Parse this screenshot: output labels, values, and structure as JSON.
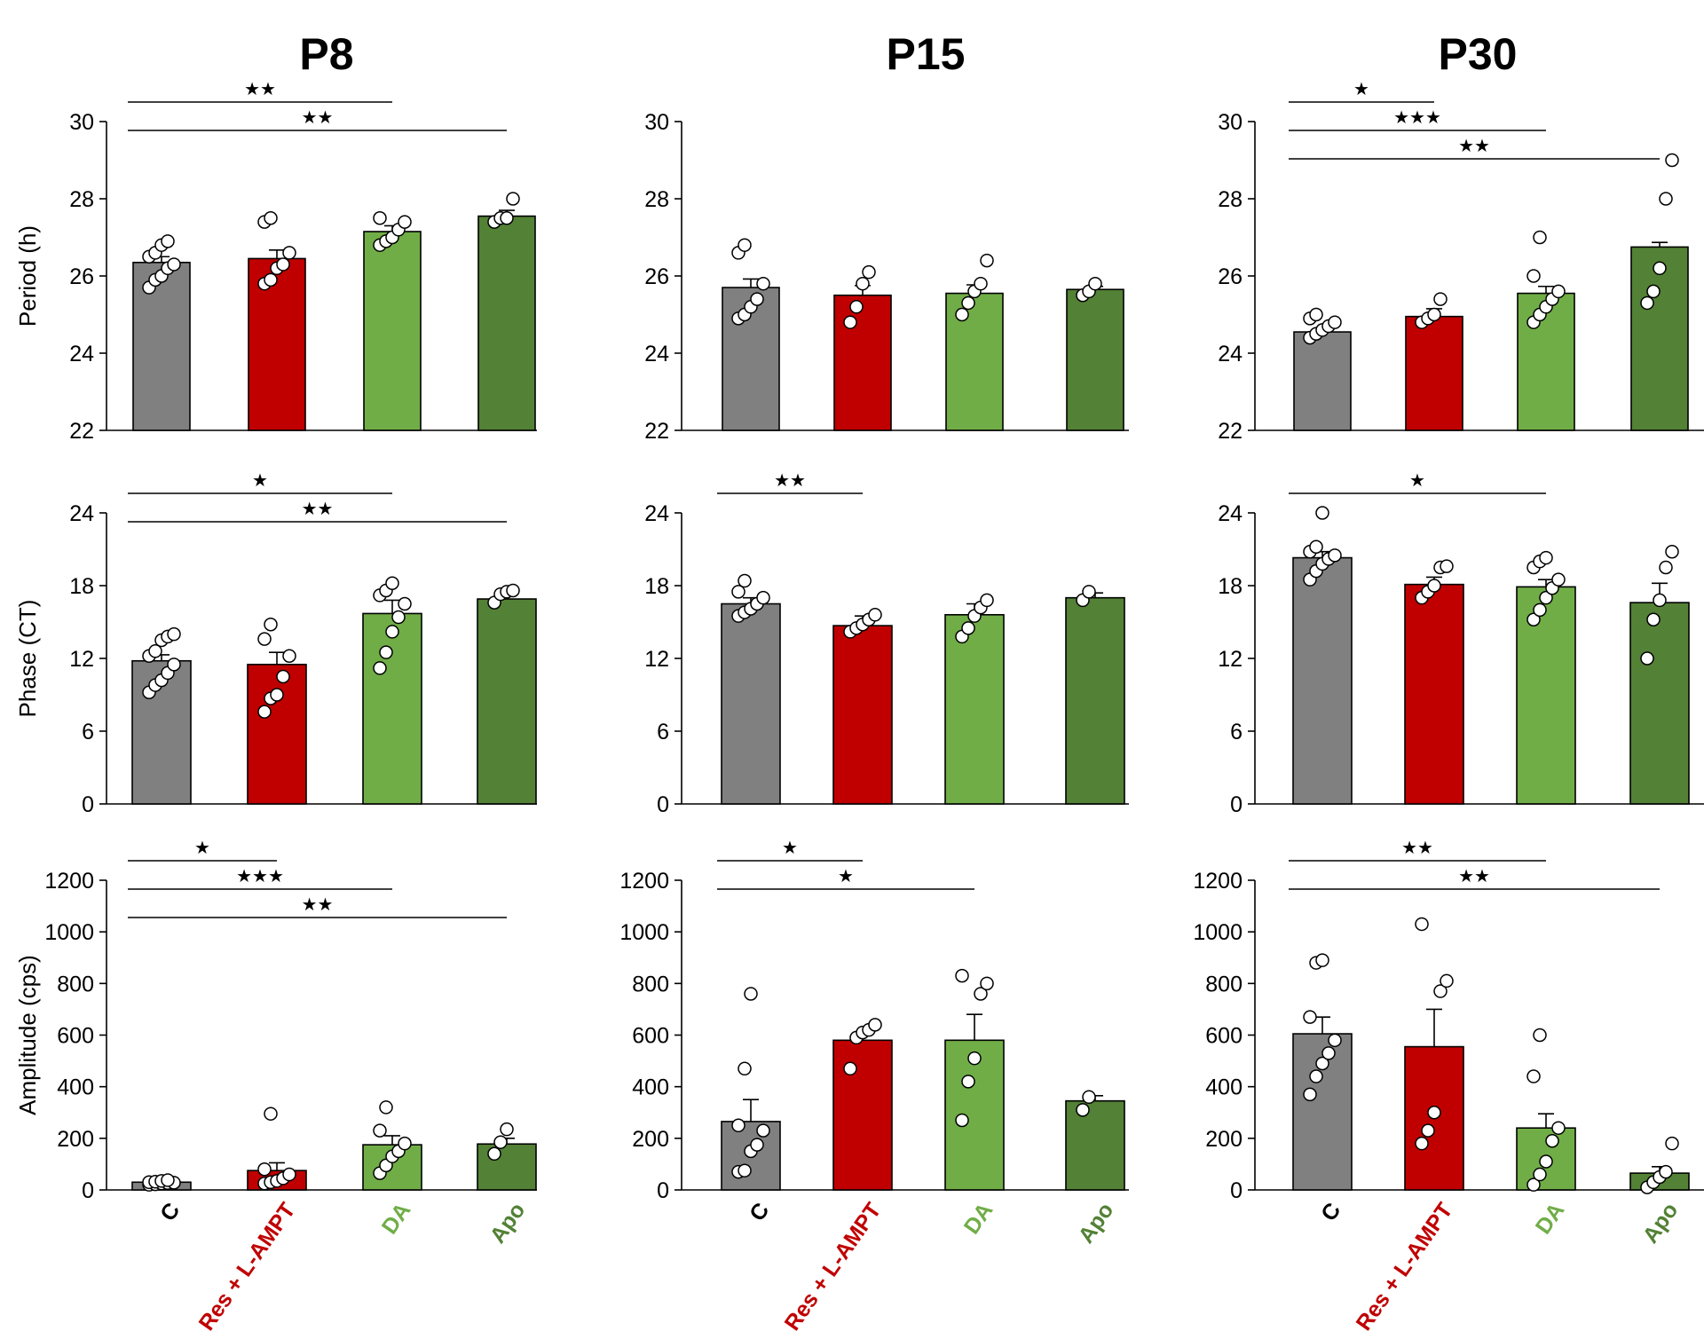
{
  "colors": {
    "C": "#808080",
    "Res + L-AMPT": "#c00000",
    "DA": "#70ad47",
    "Apo": "#538135"
  },
  "chart_data": [
    {
      "type": "bar",
      "column": "P8",
      "title": "P8",
      "ylabel": "Period (h)",
      "ylim": [
        22,
        30
      ],
      "yticks": [
        "22",
        "24",
        "26",
        "28",
        "30"
      ],
      "categories": [
        "C",
        "Res + L-AMPT",
        "DA",
        "Apo"
      ],
      "values": [
        26.35,
        26.45,
        27.15,
        27.55
      ],
      "errors": [
        0.15,
        0.22,
        0.15,
        0.15
      ],
      "points": [
        [
          25.7,
          25.9,
          26.0,
          26.2,
          26.3,
          26.5,
          26.6,
          26.8,
          26.9
        ],
        [
          25.8,
          25.9,
          26.2,
          26.3,
          26.6,
          27.4,
          27.5
        ],
        [
          26.8,
          26.9,
          27.0,
          27.2,
          27.4,
          27.5
        ],
        [
          27.4,
          27.5,
          27.5,
          28.0
        ]
      ],
      "significance": [
        {
          "from": 0,
          "to": 2,
          "label": "★★"
        },
        {
          "from": 0,
          "to": 3,
          "label": "★★"
        }
      ]
    },
    {
      "type": "bar",
      "column": "P15",
      "title": "P15",
      "ylabel": "",
      "ylim": [
        22,
        30
      ],
      "yticks": [
        "22",
        "24",
        "26",
        "28",
        "30"
      ],
      "categories": [
        "C",
        "Res + L-AMPT",
        "DA",
        "Apo"
      ],
      "values": [
        25.7,
        25.5,
        25.55,
        25.65
      ],
      "errors": [
        0.22,
        0.25,
        0.22,
        0.08
      ],
      "points": [
        [
          24.9,
          25.0,
          25.2,
          25.4,
          25.8,
          26.6,
          26.8
        ],
        [
          24.8,
          25.2,
          25.8,
          26.1
        ],
        [
          25.0,
          25.3,
          25.6,
          25.8,
          26.4
        ],
        [
          25.5,
          25.6,
          25.8
        ]
      ],
      "significance": []
    },
    {
      "type": "bar",
      "column": "P30",
      "title": "P30",
      "ylabel": "",
      "ylim": [
        22,
        30
      ],
      "yticks": [
        "22",
        "24",
        "26",
        "28",
        "30"
      ],
      "categories": [
        "C",
        "Res + L-AMPT",
        "DA",
        "Apo"
      ],
      "values": [
        24.55,
        24.95,
        25.55,
        26.75
      ],
      "errors": [
        0.1,
        0.2,
        0.18,
        0.12
      ],
      "points": [
        [
          24.4,
          24.5,
          24.6,
          24.7,
          24.8,
          24.9,
          25.0
        ],
        [
          24.8,
          24.9,
          25.0,
          25.4
        ],
        [
          24.8,
          25.0,
          25.2,
          25.4,
          25.6,
          26.0,
          27.0
        ],
        [
          25.3,
          25.6,
          26.2,
          28.0,
          29.0
        ]
      ],
      "significance": [
        {
          "from": 0,
          "to": 1,
          "label": "★"
        },
        {
          "from": 0,
          "to": 2,
          "label": "★★★"
        },
        {
          "from": 0,
          "to": 3,
          "label": "★★"
        }
      ]
    },
    {
      "type": "bar",
      "column": "P8",
      "title": "",
      "ylabel": "Phase (CT)",
      "ylim": [
        0,
        24
      ],
      "yticks": [
        "0",
        "6",
        "12",
        "18",
        "24"
      ],
      "categories": [
        "C",
        "Res + L-AMPT",
        "DA",
        "Apo"
      ],
      "values": [
        11.8,
        11.5,
        15.7,
        16.9
      ],
      "errors": [
        0.5,
        1.0,
        1.1,
        0.5
      ],
      "points": [
        [
          9.2,
          9.8,
          10.2,
          10.8,
          11.5,
          12.2,
          12.6,
          13.5,
          13.8,
          14.0
        ],
        [
          7.6,
          8.7,
          9.0,
          10.5,
          12.2,
          13.6,
          14.8
        ],
        [
          11.2,
          12.5,
          14.2,
          15.4,
          16.5,
          17.2,
          17.6,
          18.2
        ],
        [
          16.6,
          17.3,
          17.5,
          17.6
        ]
      ],
      "significance": [
        {
          "from": 0,
          "to": 2,
          "label": "★"
        },
        {
          "from": 0,
          "to": 3,
          "label": "★★"
        }
      ]
    },
    {
      "type": "bar",
      "column": "P15",
      "title": "",
      "ylabel": "",
      "ylim": [
        0,
        24
      ],
      "yticks": [
        "0",
        "6",
        "12",
        "18",
        "24"
      ],
      "categories": [
        "C",
        "Res + L-AMPT",
        "DA",
        "Apo"
      ],
      "values": [
        16.5,
        14.7,
        15.6,
        17.0
      ],
      "errors": [
        0.5,
        0.8,
        0.9,
        0.4
      ],
      "points": [
        [
          15.5,
          15.8,
          16.1,
          16.5,
          17.0,
          17.5,
          18.4
        ],
        [
          14.2,
          14.5,
          14.8,
          15.2,
          15.6
        ],
        [
          13.8,
          14.5,
          15.5,
          16.2,
          16.8
        ],
        [
          16.8,
          17.5
        ]
      ],
      "significance": [
        {
          "from": 0,
          "to": 1,
          "label": "★★"
        }
      ]
    },
    {
      "type": "bar",
      "column": "P30",
      "title": "",
      "ylabel": "",
      "ylim": [
        0,
        24
      ],
      "yticks": [
        "0",
        "6",
        "12",
        "18",
        "24"
      ],
      "categories": [
        "C",
        "Res + L-AMPT",
        "DA",
        "Apo"
      ],
      "values": [
        20.3,
        18.1,
        17.9,
        16.6
      ],
      "errors": [
        0.5,
        0.6,
        0.6,
        1.6
      ],
      "points": [
        [
          18.5,
          19.2,
          19.8,
          20.2,
          20.5,
          20.8,
          21.2,
          24.0
        ],
        [
          17.0,
          17.5,
          18.0,
          19.5,
          19.6
        ],
        [
          15.2,
          16.0,
          17.0,
          17.8,
          18.5,
          19.5,
          20.0,
          20.3
        ],
        [
          12.0,
          15.2,
          16.8,
          19.5,
          20.8
        ]
      ],
      "significance": [
        {
          "from": 0,
          "to": 2,
          "label": "★"
        }
      ]
    },
    {
      "type": "bar",
      "column": "P8",
      "title": "",
      "ylabel": "Amplitude (cps)",
      "ylim": [
        0,
        1200
      ],
      "yticks": [
        "0",
        "200",
        "400",
        "600",
        "800",
        "1000",
        "1200"
      ],
      "categories": [
        "C",
        "Res + L-AMPT",
        "DA",
        "Apo"
      ],
      "values": [
        30,
        75,
        175,
        178
      ],
      "errors": [
        5,
        30,
        35,
        22
      ],
      "points": [
        [
          20,
          22,
          25,
          27,
          28,
          30,
          32,
          35,
          38
        ],
        [
          25,
          30,
          35,
          45,
          60,
          80,
          295
        ],
        [
          65,
          95,
          130,
          150,
          180,
          230,
          320
        ],
        [
          140,
          185,
          235
        ]
      ],
      "significance": [
        {
          "from": 0,
          "to": 1,
          "label": "★"
        },
        {
          "from": 0,
          "to": 2,
          "label": "★★★"
        },
        {
          "from": 0,
          "to": 3,
          "label": "★★"
        }
      ]
    },
    {
      "type": "bar",
      "column": "P15",
      "title": "",
      "ylabel": "",
      "ylim": [
        0,
        1200
      ],
      "yticks": [
        "0",
        "200",
        "400",
        "600",
        "800",
        "1000",
        "1200"
      ],
      "categories": [
        "C",
        "Res + L-AMPT",
        "DA",
        "Apo"
      ],
      "values": [
        265,
        580,
        580,
        345
      ],
      "errors": [
        85,
        30,
        100,
        20
      ],
      "points": [
        [
          70,
          75,
          150,
          175,
          230,
          250,
          470,
          760
        ],
        [
          470,
          590,
          610,
          620,
          640
        ],
        [
          270,
          420,
          510,
          760,
          800,
          830
        ],
        [
          310,
          360
        ]
      ],
      "significance": [
        {
          "from": 0,
          "to": 1,
          "label": "★"
        },
        {
          "from": 0,
          "to": 2,
          "label": "★"
        }
      ]
    },
    {
      "type": "bar",
      "column": "P30",
      "title": "",
      "ylabel": "",
      "ylim": [
        0,
        1200
      ],
      "yticks": [
        "0",
        "200",
        "400",
        "600",
        "800",
        "1000",
        "1200"
      ],
      "categories": [
        "C",
        "Res + L-AMPT",
        "DA",
        "Apo"
      ],
      "values": [
        605,
        555,
        240,
        65
      ],
      "errors": [
        65,
        145,
        55,
        25
      ],
      "points": [
        [
          370,
          440,
          490,
          530,
          580,
          670,
          880,
          890
        ],
        [
          180,
          230,
          300,
          770,
          810,
          1030
        ],
        [
          20,
          60,
          110,
          190,
          240,
          440,
          600
        ],
        [
          10,
          30,
          50,
          70,
          180
        ]
      ],
      "significance": [
        {
          "from": 0,
          "to": 2,
          "label": "★★"
        },
        {
          "from": 0,
          "to": 3,
          "label": "★★"
        }
      ]
    }
  ]
}
